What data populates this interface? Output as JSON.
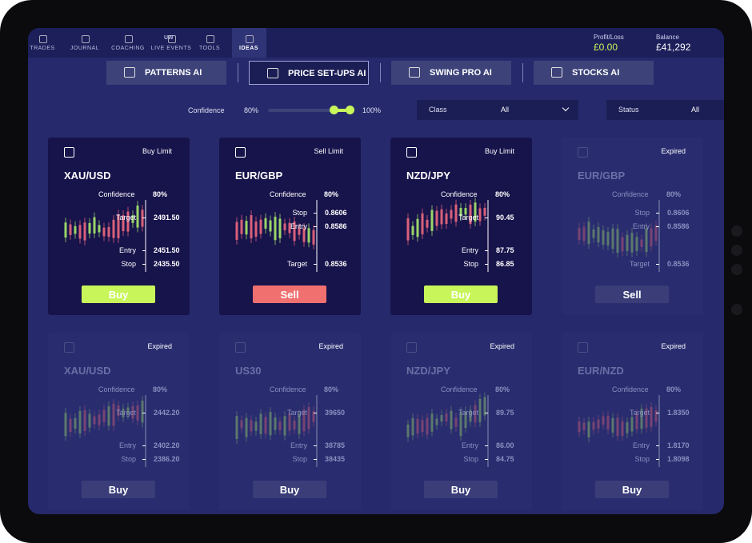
{
  "nav": {
    "tabs": [
      "TRADES",
      "JOURNAL",
      "COACHING",
      "LIVE EVENTS",
      "TOOLS",
      "IDEAS"
    ],
    "icon_text": "UW"
  },
  "account": {
    "profit_loss_label": "Profit/Loss",
    "profit_loss": "£0.00",
    "balance_label": "Balance",
    "balance": "£41,292"
  },
  "tools": [
    "PATTERNS AI",
    "PRICE SET-UPS AI",
    "SWING PRO AI",
    "STOCKS AI"
  ],
  "filters": {
    "confidence_label": "Confidence",
    "confidence_min": "80%",
    "confidence_max": "100%",
    "class_label": "Class",
    "class_value": "All",
    "status_label": "Status",
    "status_value": "All"
  },
  "cards": [
    {
      "status": "Buy Limit",
      "pair": "XAU/USD",
      "confidence_label": "Confidence",
      "confidence": "80%",
      "levels": [
        {
          "label": "Target",
          "value": "2491.50"
        },
        {
          "label": "Entry",
          "value": "2451.50"
        },
        {
          "label": "Stop",
          "value": "2435.50"
        }
      ],
      "action": "Buy",
      "action_color": "#c8f55a"
    },
    {
      "status": "Sell Limit",
      "pair": "EUR/GBP",
      "confidence_label": "Confidence",
      "confidence": "80%",
      "levels": [
        {
          "label": "Stop",
          "value": "0.8606"
        },
        {
          "label": "Entry",
          "value": "0.8586"
        },
        {
          "label": "Target",
          "value": "0.8536"
        }
      ],
      "action": "Sell",
      "action_color": "#f07070"
    },
    {
      "status": "Buy Limit",
      "pair": "NZD/JPY",
      "confidence_label": "Confidence",
      "confidence": "80%",
      "levels": [
        {
          "label": "Target",
          "value": "90.45"
        },
        {
          "label": "Entry",
          "value": "87.75"
        },
        {
          "label": "Stop",
          "value": "86.85"
        }
      ],
      "action": "Buy",
      "action_color": "#c8f55a"
    },
    {
      "status": "Expired",
      "pair": "EUR/GBP",
      "confidence_label": "Confidence",
      "confidence": "80%",
      "levels": [
        {
          "label": "Stop",
          "value": "0.8606"
        },
        {
          "label": "Entry",
          "value": "0.8586"
        },
        {
          "label": "Target",
          "value": "0.8536"
        }
      ],
      "action": "Sell",
      "action_color": "#3a3d78"
    },
    {
      "status": "Expired",
      "pair": "XAU/USD",
      "confidence_label": "Confidence",
      "confidence": "80%",
      "levels": [
        {
          "label": "Target",
          "value": "2442.20"
        },
        {
          "label": "Entry",
          "value": "2402.20"
        },
        {
          "label": "Stop",
          "value": "2386.20"
        }
      ],
      "action": "Buy",
      "action_color": "#3a3d78"
    },
    {
      "status": "Expired",
      "pair": "US30",
      "confidence_label": "Confidence",
      "confidence": "80%",
      "levels": [
        {
          "label": "Target",
          "value": "39650"
        },
        {
          "label": "Entry",
          "value": "38785"
        },
        {
          "label": "Stop",
          "value": "38435"
        }
      ],
      "action": "Buy",
      "action_color": "#3a3d78"
    },
    {
      "status": "Expired",
      "pair": "NZD/JPY",
      "confidence_label": "Confidence",
      "confidence": "80%",
      "levels": [
        {
          "label": "Target",
          "value": "89.75"
        },
        {
          "label": "Entry",
          "value": "86.00"
        },
        {
          "label": "Stop",
          "value": "84.75"
        }
      ],
      "action": "Buy",
      "action_color": "#3a3d78"
    },
    {
      "status": "Expired",
      "pair": "EUR/NZD",
      "confidence_label": "Confidence",
      "confidence": "80%",
      "levels": [
        {
          "label": "Target",
          "value": "1.8350"
        },
        {
          "label": "Entry",
          "value": "1.8170"
        },
        {
          "label": "Stop",
          "value": "1.8098"
        }
      ],
      "action": "Buy",
      "action_color": "#3a3d78"
    }
  ]
}
